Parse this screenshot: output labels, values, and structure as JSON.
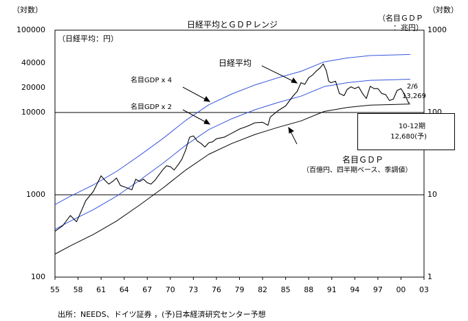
{
  "chart_data": {
    "type": "line",
    "title": "日経平均とＧＤＰレンジ",
    "xlabel": "",
    "left_axis": {
      "unit_label": "（対数）",
      "ylabel": "（日経平均：円）",
      "scale": "log",
      "ylim": [
        100,
        100000
      ],
      "ticks": [
        100,
        1000,
        10000,
        20000,
        40000,
        100000
      ],
      "tick_labels": [
        "100",
        "1000",
        "10000",
        "20000",
        "40000",
        "100000"
      ]
    },
    "right_axis": {
      "unit_label": "（対数）",
      "ylabel": "（名目ＧＤＰ\n：兆円）",
      "scale": "log",
      "ylim": [
        1,
        1000
      ],
      "ticks": [
        1,
        10,
        100,
        1000
      ],
      "tick_labels": [
        "1",
        "10",
        "100",
        "1000"
      ]
    },
    "x_ticks": [
      1955,
      1958,
      1961,
      1964,
      1967,
      1970,
      1973,
      1976,
      1979,
      1982,
      1985,
      1988,
      1991,
      1994,
      1997,
      2000,
      2003
    ],
    "x_tick_labels": [
      "55",
      "58",
      "61",
      "64",
      "67",
      "70",
      "73",
      "76",
      "79",
      "82",
      "85",
      "88",
      "91",
      "94",
      "97",
      "00",
      "03"
    ],
    "xlim": [
      1955,
      2003
    ],
    "reference_lines": [
      1000,
      10000
    ],
    "series": [
      {
        "name": "名目ＧＤＰ",
        "axis": "left",
        "color": "#000000",
        "x": [
          1955,
          1957,
          1960,
          1963,
          1966,
          1969,
          1972,
          1975,
          1978,
          1981,
          1984,
          1987,
          1990,
          1993,
          1996,
          1999,
          2001.2
        ],
        "values": [
          190,
          240,
          330,
          480,
          750,
          1200,
          2000,
          3100,
          4200,
          5400,
          6600,
          7900,
          10300,
          11500,
          12300,
          12500,
          12680
        ]
      },
      {
        "name": "名目GDP x 2",
        "axis": "left",
        "color": "#3355dd",
        "x": [
          1955,
          1957,
          1960,
          1963,
          1966,
          1969,
          1972,
          1975,
          1978,
          1981,
          1984,
          1987,
          1990,
          1993,
          1996,
          1999,
          2001.2
        ],
        "values": [
          380,
          480,
          660,
          960,
          1500,
          2400,
          4000,
          6200,
          8400,
          10800,
          13200,
          15800,
          20600,
          23000,
          24600,
          25000,
          25360
        ]
      },
      {
        "name": "名目GDP x 4",
        "axis": "left",
        "color": "#3355dd",
        "x": [
          1955,
          1957,
          1960,
          1963,
          1966,
          1969,
          1972,
          1975,
          1978,
          1981,
          1984,
          1987,
          1990,
          1993,
          1996,
          1999,
          2001.2
        ],
        "values": [
          760,
          960,
          1320,
          1920,
          3000,
          4800,
          8000,
          12400,
          16800,
          21600,
          26400,
          31600,
          41200,
          46000,
          49200,
          50000,
          50720
        ]
      },
      {
        "name": "日経平均",
        "axis": "left",
        "color": "#000000",
        "x": [
          1955,
          1956,
          1957,
          1957.8,
          1958.5,
          1959,
          1960,
          1961,
          1961.5,
          1962,
          1962.5,
          1963,
          1963.5,
          1964,
          1964.5,
          1965,
          1965.5,
          1966,
          1966.5,
          1967,
          1967.5,
          1968,
          1969,
          1969.5,
          1970,
          1970.5,
          1971,
          1971.5,
          1972,
          1972.5,
          1973,
          1973.5,
          1974,
          1974.5,
          1975,
          1975.5,
          1976,
          1977,
          1978,
          1979,
          1980,
          1981,
          1982,
          1982.7,
          1983,
          1984,
          1985,
          1986,
          1986.5,
          1987,
          1987.5,
          1988,
          1988.5,
          1989,
          1989.5,
          1989.9,
          1990.3,
          1990.6,
          1990.9,
          1991.5,
          1992,
          1992.6,
          1993,
          1993.5,
          1994,
          1994.5,
          1995,
          1995.5,
          1996,
          1996.5,
          1997,
          1997.5,
          1998,
          1998.5,
          1999,
          1999.5,
          2000,
          2000.5,
          2001,
          2001.1
        ],
        "values": [
          360,
          420,
          560,
          470,
          660,
          850,
          1100,
          1700,
          1500,
          1350,
          1450,
          1600,
          1300,
          1250,
          1200,
          1150,
          1550,
          1450,
          1550,
          1400,
          1350,
          1500,
          2000,
          2250,
          2200,
          2000,
          2300,
          2700,
          3500,
          5000,
          5200,
          4500,
          4200,
          3800,
          4300,
          4400,
          4800,
          5000,
          5600,
          6300,
          6800,
          7500,
          7600,
          7000,
          8800,
          10500,
          12000,
          16000,
          18000,
          23000,
          22000,
          26500,
          28500,
          32000,
          35000,
          38900,
          32000,
          24000,
          23000,
          24000,
          17000,
          16000,
          19000,
          20500,
          19500,
          20500,
          17000,
          14800,
          20800,
          19500,
          19500,
          17000,
          16500,
          14000,
          14500,
          18500,
          19500,
          16500,
          13000,
          13269
        ]
      }
    ],
    "annotations": {
      "nikkei_label": "日経平均",
      "x4_label": "名目GDP x 4",
      "x2_label": "名目GDP x 2",
      "gdp_label": "名目ＧＤＰ",
      "gdp_sublabel": "（百億円、四半期ベース、季調値）",
      "end_date": "2/6",
      "end_value": "13,269",
      "box_period": "10-12期",
      "box_value": "12,680(予)"
    },
    "source": "出所：NEEDS、ドイツ証券 ，(予)日本経済研究センター予想"
  }
}
